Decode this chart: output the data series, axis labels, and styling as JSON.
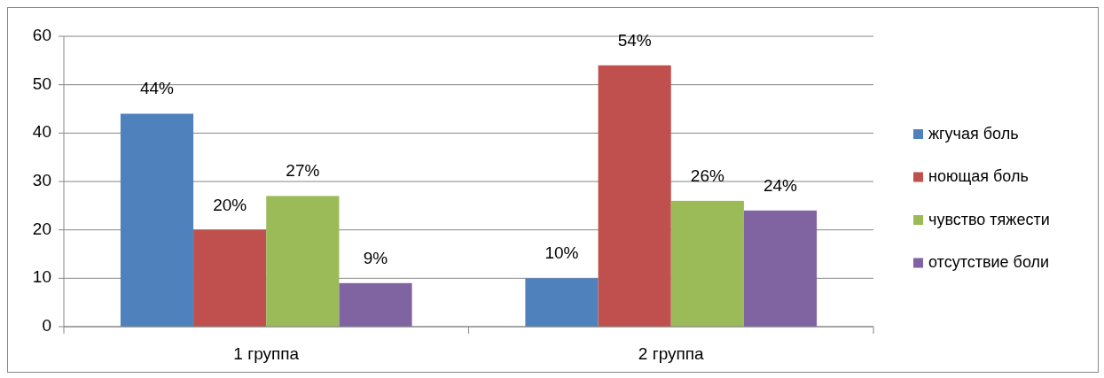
{
  "chart_data": {
    "type": "bar",
    "categories": [
      "1 группа",
      "2 группа"
    ],
    "series": [
      {
        "name": "жгучая боль",
        "color": "#4f81bd",
        "values": [
          44,
          10
        ],
        "value_labels": [
          "44%",
          "10%"
        ]
      },
      {
        "name": "ноющая боль",
        "color": "#c0504d",
        "values": [
          20,
          54
        ],
        "value_labels": [
          "20%",
          "54%"
        ]
      },
      {
        "name": "чувство тяжести",
        "color": "#9bbb59",
        "values": [
          27,
          26
        ],
        "value_labels": [
          "27%",
          "26%"
        ]
      },
      {
        "name": "отсутствие боли",
        "color": "#8064a2",
        "values": [
          9,
          24
        ],
        "value_labels": [
          "9%",
          "24%"
        ]
      }
    ],
    "ylim": [
      0,
      60
    ],
    "yticks": [
      0,
      10,
      20,
      30,
      40,
      50,
      60
    ],
    "grid": "y",
    "legend": "right"
  }
}
